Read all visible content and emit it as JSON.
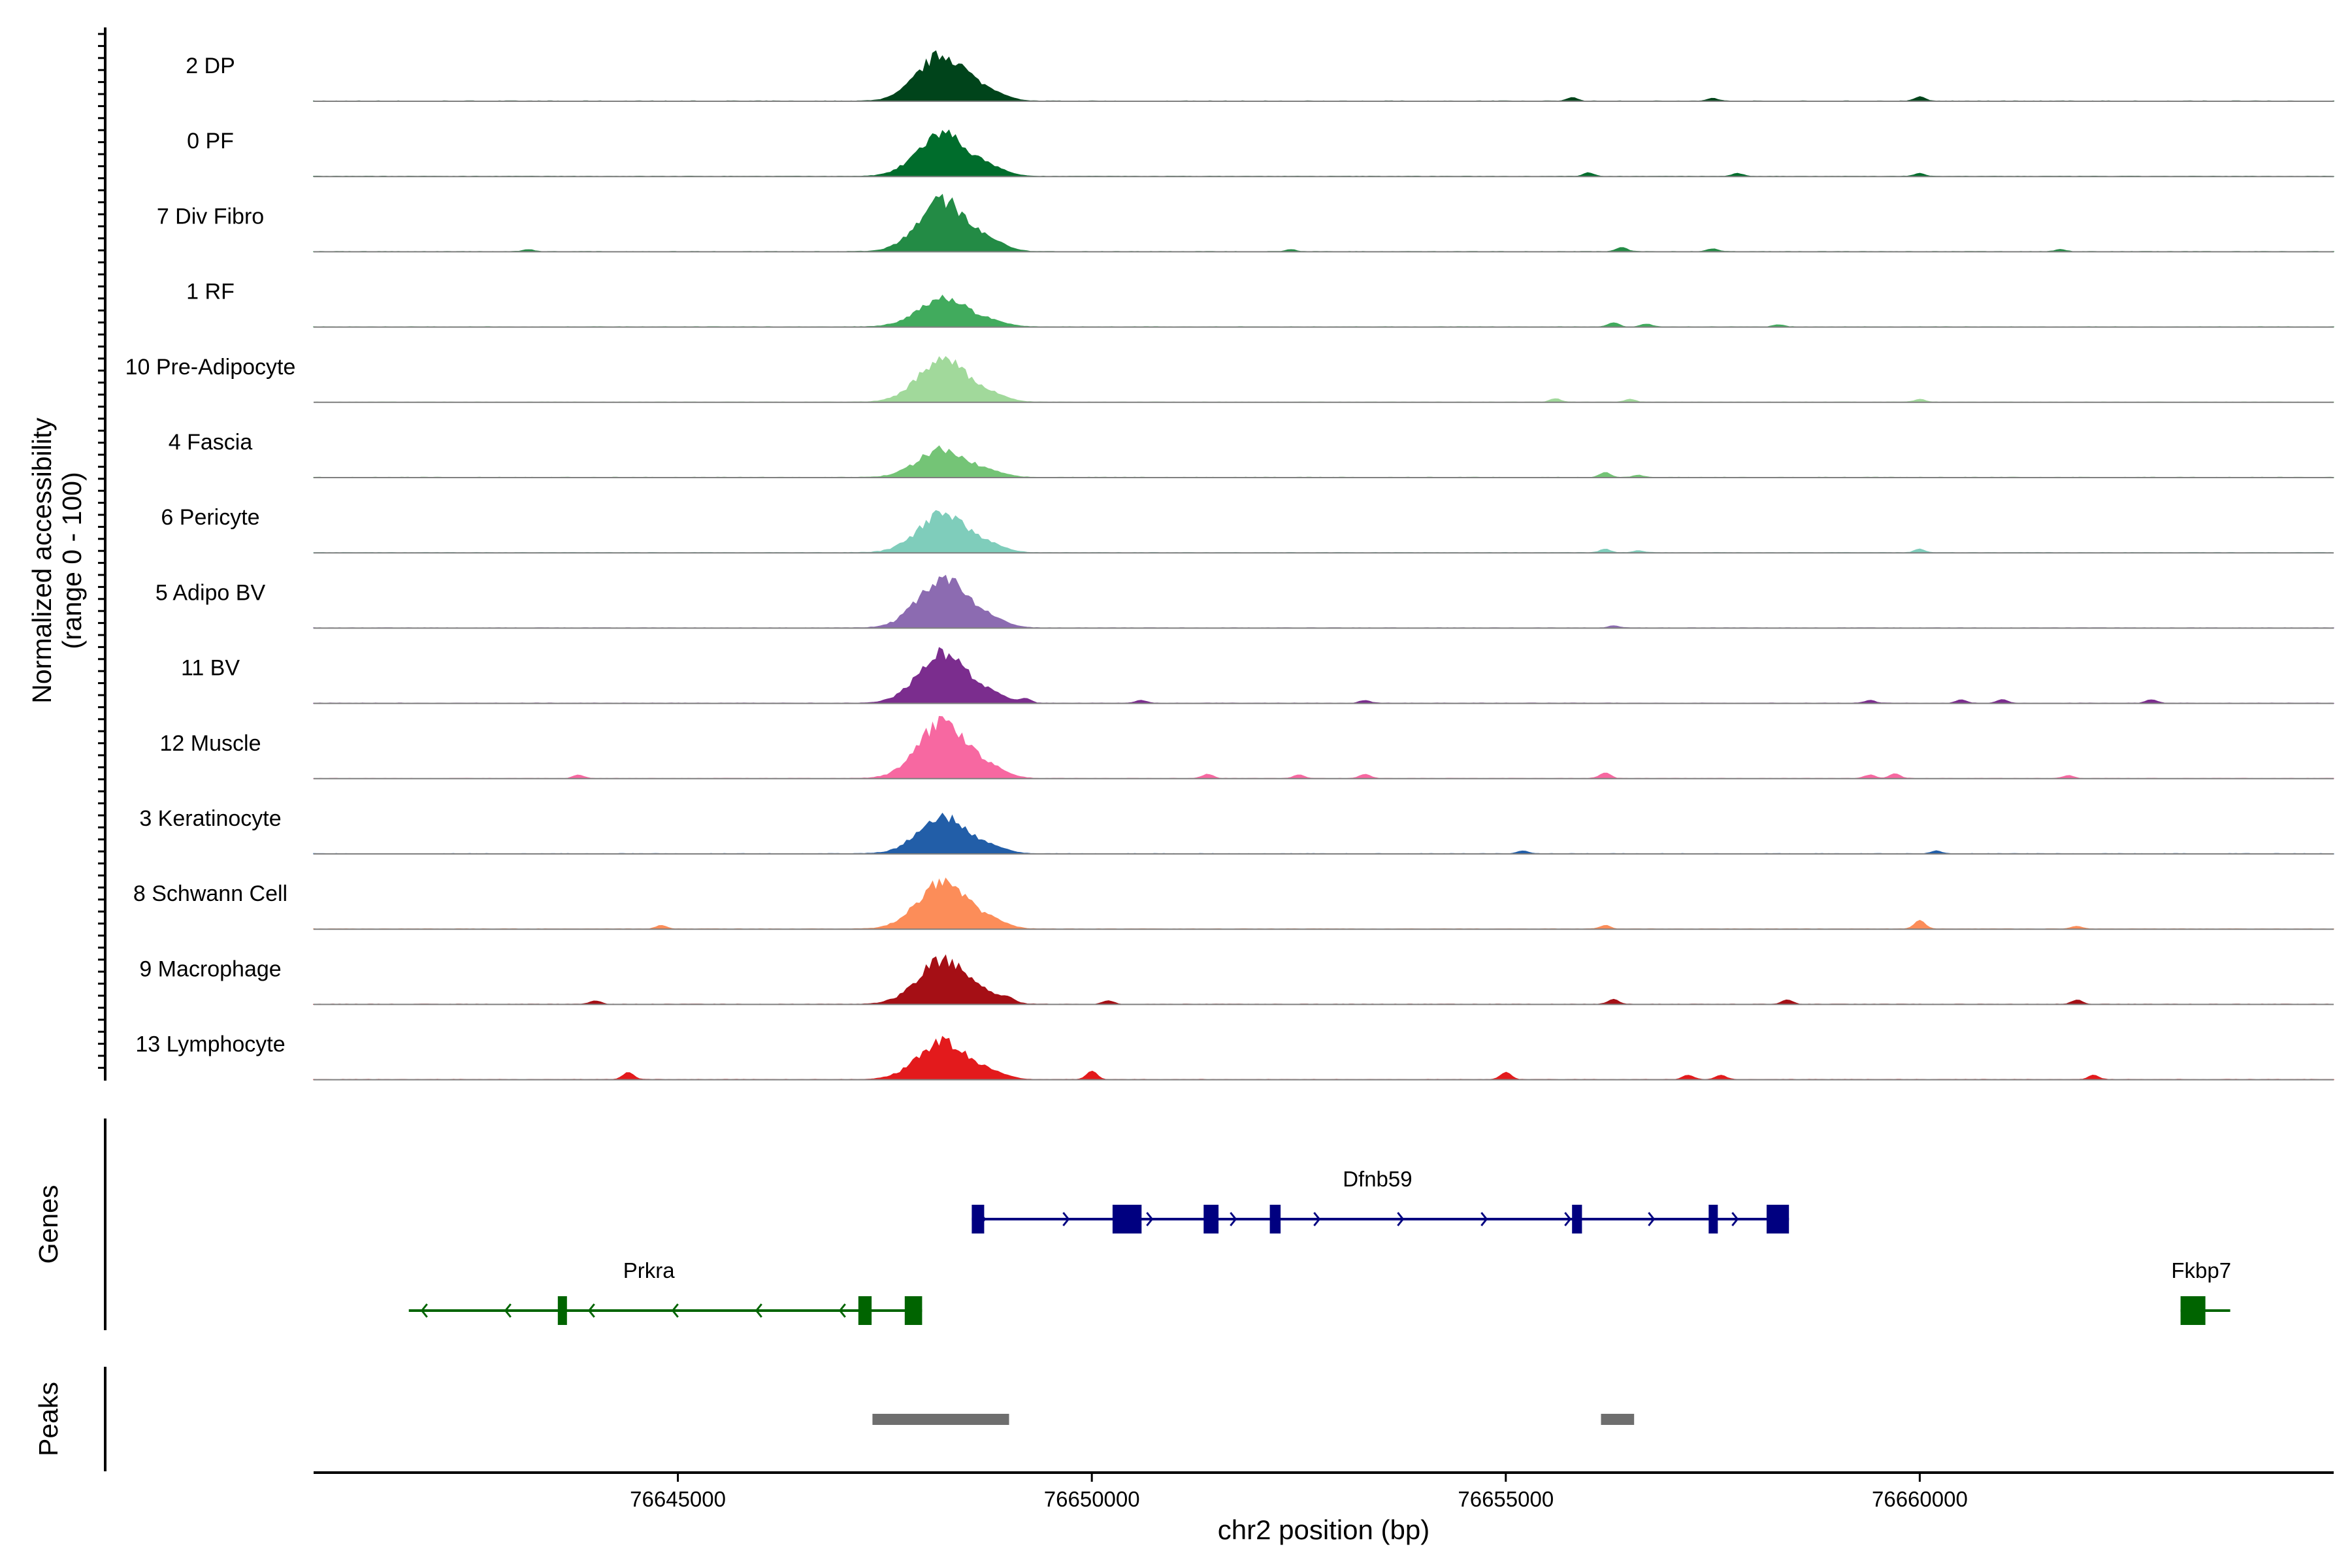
{
  "chart_data": {
    "type": "area",
    "title": "",
    "y_axis_label_line1": "Normalized accessibility",
    "y_axis_label_line2": "(range 0 - 100)",
    "x_axis_label": "chr2 position (bp)",
    "xlim": [
      76640600,
      76665000
    ],
    "x_ticks": [
      76645000,
      76650000,
      76655000,
      76660000
    ],
    "tracks": [
      {
        "name": "2 DP",
        "color": "#00441b",
        "main_peak": 0.75,
        "extra": [
          [
            76655800,
            0.05
          ],
          [
            76657500,
            0.04
          ],
          [
            76660000,
            0.06
          ]
        ]
      },
      {
        "name": "0 PF",
        "color": "#006d2c",
        "main_peak": 0.7,
        "extra": [
          [
            76656000,
            0.05
          ],
          [
            76657800,
            0.04
          ],
          [
            76660000,
            0.04
          ]
        ]
      },
      {
        "name": "7 Div Fibro",
        "color": "#238b45",
        "main_peak": 0.82,
        "extra": [
          [
            76643200,
            0.03
          ],
          [
            76652400,
            0.03
          ],
          [
            76656400,
            0.06
          ],
          [
            76657500,
            0.04
          ],
          [
            76661700,
            0.03
          ]
        ]
      },
      {
        "name": "1 RF",
        "color": "#41ab5d",
        "main_peak": 0.48,
        "extra": [
          [
            76656300,
            0.06
          ],
          [
            76656700,
            0.04
          ],
          [
            76658300,
            0.03
          ]
        ]
      },
      {
        "name": "10 Pre-Adipocyte",
        "color": "#a1d99b",
        "main_peak": 0.68,
        "extra": [
          [
            76655600,
            0.05
          ],
          [
            76656500,
            0.04
          ],
          [
            76660000,
            0.04
          ]
        ]
      },
      {
        "name": "4 Fascia",
        "color": "#74c476",
        "main_peak": 0.45,
        "extra": [
          [
            76656200,
            0.07
          ],
          [
            76656600,
            0.03
          ]
        ]
      },
      {
        "name": "6 Pericyte",
        "color": "#7fcdbb",
        "main_peak": 0.62,
        "extra": [
          [
            76656200,
            0.05
          ],
          [
            76656600,
            0.03
          ],
          [
            76660000,
            0.05
          ]
        ]
      },
      {
        "name": "5 Adipo BV",
        "color": "#8c6bb1",
        "main_peak": 0.8,
        "extra": [
          [
            76656300,
            0.03
          ]
        ]
      },
      {
        "name": "11 BV",
        "color": "#7b2d8e",
        "main_peak": 0.8,
        "extra": [
          [
            76649200,
            0.06
          ],
          [
            76650600,
            0.04
          ],
          [
            76653300,
            0.04
          ],
          [
            76659400,
            0.04
          ],
          [
            76660500,
            0.05
          ],
          [
            76661000,
            0.05
          ],
          [
            76662800,
            0.05
          ]
        ]
      },
      {
        "name": "12 Muscle",
        "color": "#f768a1",
        "main_peak": 0.9,
        "extra": [
          [
            76643800,
            0.05
          ],
          [
            76651400,
            0.06
          ],
          [
            76652500,
            0.05
          ],
          [
            76653300,
            0.06
          ],
          [
            76656200,
            0.08
          ],
          [
            76659400,
            0.05
          ],
          [
            76659700,
            0.07
          ],
          [
            76661800,
            0.04
          ]
        ]
      },
      {
        "name": "3 Keratinocyte",
        "color": "#225ea8",
        "main_peak": 0.58,
        "extra": [
          [
            76655200,
            0.04
          ],
          [
            76660200,
            0.04
          ]
        ]
      },
      {
        "name": "8 Schwann Cell",
        "color": "#fc8d59",
        "main_peak": 0.75,
        "extra": [
          [
            76644800,
            0.05
          ],
          [
            76656200,
            0.05
          ],
          [
            76660000,
            0.12
          ],
          [
            76661900,
            0.04
          ]
        ]
      },
      {
        "name": "9 Macrophage",
        "color": "#a50f15",
        "main_peak": 0.72,
        "extra": [
          [
            76644000,
            0.05
          ],
          [
            76649000,
            0.04
          ],
          [
            76650200,
            0.05
          ],
          [
            76656300,
            0.07
          ],
          [
            76658400,
            0.06
          ],
          [
            76661900,
            0.06
          ]
        ]
      },
      {
        "name": "13 Lymphocyte",
        "color": "#e31a1c",
        "main_peak": 0.62,
        "extra": [
          [
            76644400,
            0.1
          ],
          [
            76650000,
            0.12
          ],
          [
            76655000,
            0.1
          ],
          [
            76657200,
            0.06
          ],
          [
            76657600,
            0.06
          ],
          [
            76662100,
            0.06
          ]
        ]
      }
    ],
    "genes": [
      {
        "name": "Dfnb59",
        "strand": "+",
        "color": "#000080",
        "start": 76648550,
        "end": 76658420,
        "exons": [
          [
            76648550,
            76648700
          ],
          [
            76650250,
            76650600
          ],
          [
            76651350,
            76651530
          ],
          [
            76652150,
            76652280
          ],
          [
            76655800,
            76655920
          ],
          [
            76657450,
            76657560
          ],
          [
            76658150,
            76658420
          ]
        ]
      },
      {
        "name": "Prkra",
        "strand": "-",
        "color": "#006400",
        "start": 76641750,
        "end": 76647950,
        "exons": [
          [
            76643550,
            76643650
          ],
          [
            76647180,
            76647340
          ],
          [
            76647740,
            76647950
          ]
        ]
      },
      {
        "name": "Fkbp7",
        "strand": "+",
        "color": "#006400",
        "start": 76663150,
        "end": 76663750,
        "exons": [
          [
            76663150,
            76663450
          ]
        ]
      }
    ],
    "peaks": [
      [
        76647350,
        76649000
      ],
      [
        76656150,
        76656550
      ]
    ],
    "panel_labels": {
      "genes": "Genes",
      "peaks": "Peaks"
    }
  }
}
